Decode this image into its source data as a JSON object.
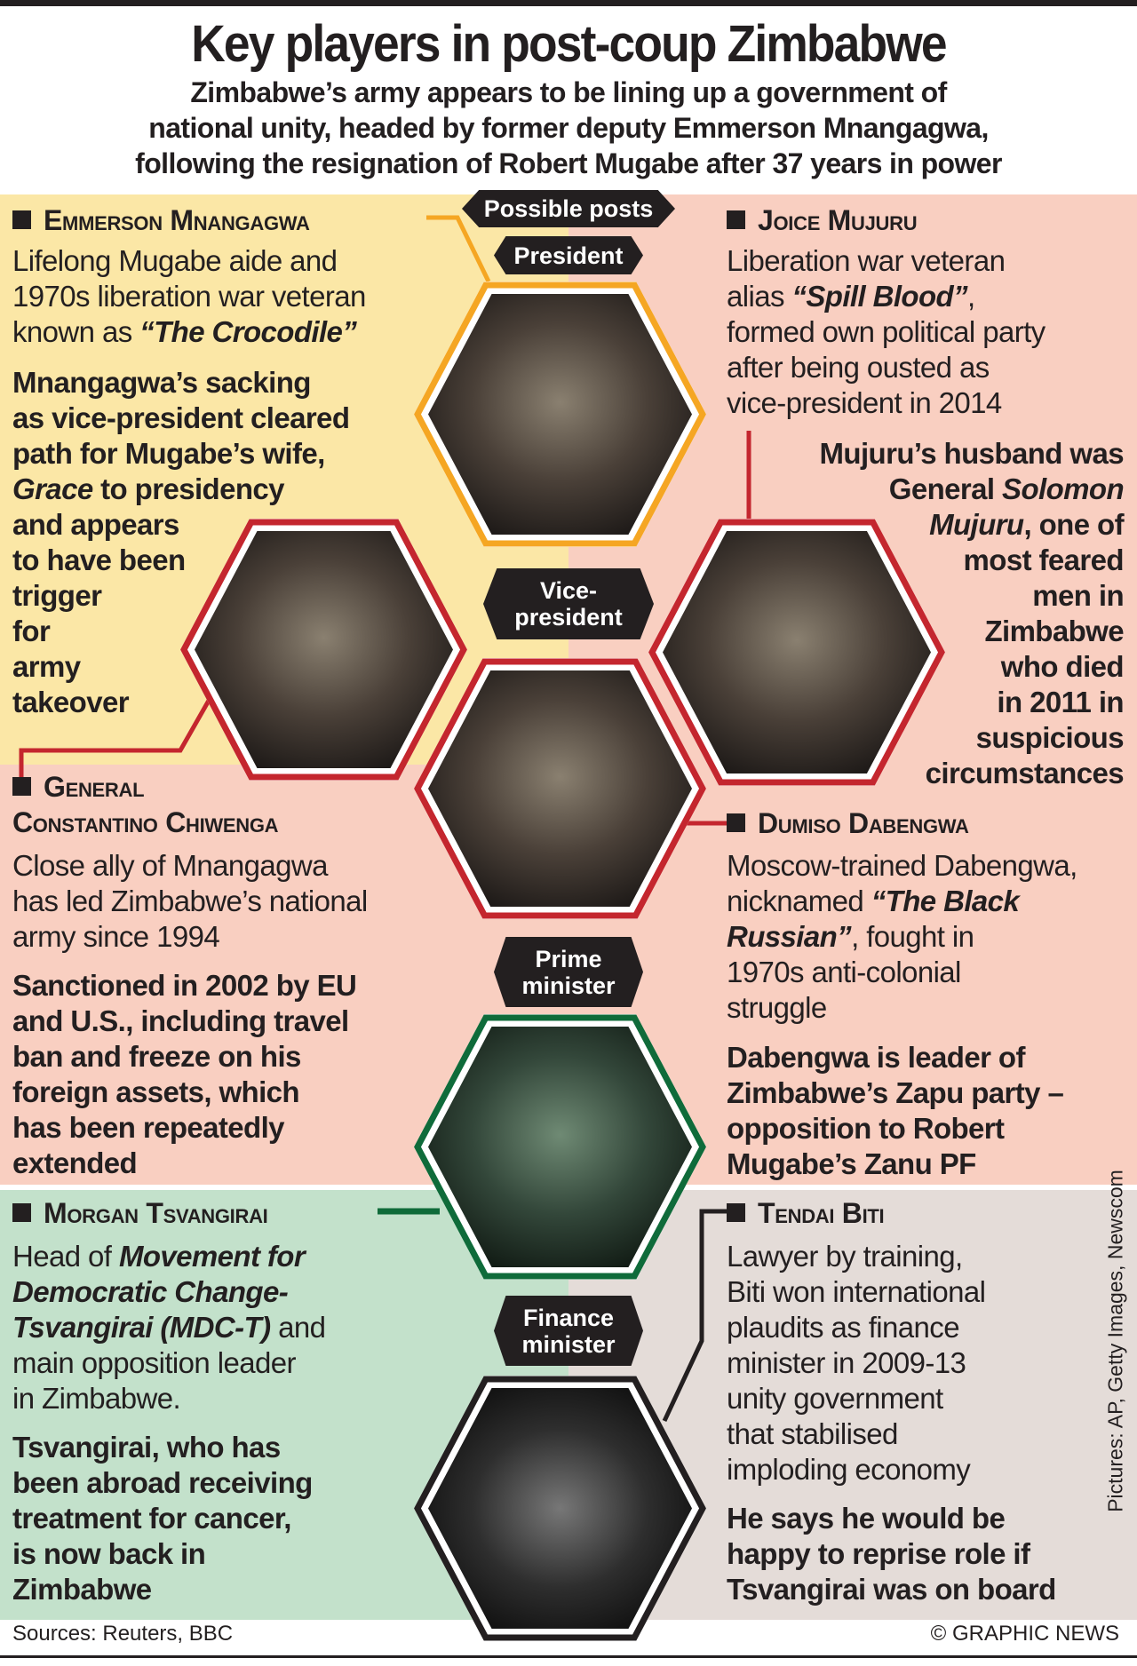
{
  "title": "Key players in post-coup Zimbabwe",
  "subtitle": [
    "Zimbabwe’s army appears to be lining up a government of",
    "national unity, headed by former deputy Emmerson Mnangagwa,",
    "following the resignation of Robert Mugabe after 37 years in power"
  ],
  "colors": {
    "yellow_panel": "#fbe7a6",
    "pink_panel": "#f9cfc1",
    "green_panel": "#c3e1cb",
    "grey_panel": "#e4dcd8",
    "president": "#f5a623",
    "vice_president": "#c4262e",
    "prime_minister": "#0f6b3a",
    "finance_minister": "#231f20"
  },
  "posts": {
    "header": "Possible posts",
    "president": "President",
    "vice_president": [
      "Vice-",
      "president"
    ],
    "prime_minister": [
      "Prime",
      "minister"
    ],
    "finance_minister": [
      "Finance",
      "minister"
    ]
  },
  "people": {
    "mnangagwa": {
      "name": "Emmerson Mnangagwa",
      "body": [
        [
          [
            "Lifelong Mugabe aide and",
            0
          ]
        ],
        [
          [
            "1970s liberation war veteran",
            0
          ]
        ],
        [
          [
            "known as ",
            0
          ],
          [
            "“The Crocodile”",
            1
          ]
        ]
      ],
      "bold": [
        [
          [
            "Mnangagwa’s sacking",
            0
          ]
        ],
        [
          [
            "as vice-president cleared",
            0
          ]
        ],
        [
          [
            "path for Mugabe’s wife,",
            0
          ]
        ],
        [
          [
            "Grace",
            1
          ],
          [
            " to presidency",
            0
          ]
        ],
        [
          [
            "and appears",
            0
          ]
        ],
        [
          [
            "to have been",
            0
          ]
        ],
        [
          [
            "trigger",
            0
          ]
        ],
        [
          [
            "for",
            0
          ]
        ],
        [
          [
            "army",
            0
          ]
        ],
        [
          [
            "takeover",
            0
          ]
        ]
      ]
    },
    "mujuru": {
      "name": "Joice Mujuru",
      "body": [
        [
          [
            "Liberation war veteran",
            0
          ]
        ],
        [
          [
            "alias ",
            0
          ],
          [
            "“Spill Blood”",
            1
          ],
          [
            ",",
            0
          ]
        ],
        [
          [
            "formed own political party",
            0
          ]
        ],
        [
          [
            "after being ousted as",
            0
          ]
        ],
        [
          [
            "vice-president in 2014",
            0
          ]
        ]
      ],
      "bold": [
        [
          [
            "Mujuru’s husband was",
            0
          ]
        ],
        [
          [
            "General ",
            0
          ],
          [
            "Solomon",
            1
          ]
        ],
        [
          [
            "Mujuru",
            1
          ],
          [
            ", one of",
            0
          ]
        ],
        [
          [
            "most feared",
            0
          ]
        ],
        [
          [
            "men in",
            0
          ]
        ],
        [
          [
            "Zimbabwe",
            0
          ]
        ],
        [
          [
            "who died",
            0
          ]
        ],
        [
          [
            "in 2011 in",
            0
          ]
        ],
        [
          [
            "suspicious",
            0
          ]
        ],
        [
          [
            "circumstances",
            0
          ]
        ]
      ]
    },
    "chiwenga": {
      "name": [
        "General",
        "Constantino Chiwenga"
      ],
      "body": [
        [
          [
            "Close ally of Mnangagwa",
            0
          ]
        ],
        [
          [
            "has led Zimbabwe’s national",
            0
          ]
        ],
        [
          [
            "army since 1994",
            0
          ]
        ]
      ],
      "bold": [
        [
          [
            "Sanctioned in 2002 by EU",
            0
          ]
        ],
        [
          [
            "and U.S., including travel",
            0
          ]
        ],
        [
          [
            "ban and freeze on his",
            0
          ]
        ],
        [
          [
            "foreign assets, which",
            0
          ]
        ],
        [
          [
            "has been repeatedly",
            0
          ]
        ],
        [
          [
            "extended",
            0
          ]
        ]
      ]
    },
    "dabengwa": {
      "name": "Dumiso Dabengwa",
      "body": [
        [
          [
            "Moscow-trained Dabengwa,",
            0
          ]
        ],
        [
          [
            "nicknamed ",
            0
          ],
          [
            "“The Black",
            1
          ]
        ],
        [
          [
            "Russian”",
            1
          ],
          [
            ", fought in",
            0
          ]
        ],
        [
          [
            "1970s anti-colonial",
            0
          ]
        ],
        [
          [
            "struggle",
            0
          ]
        ]
      ],
      "bold": [
        [
          [
            "Dabengwa is leader of",
            0
          ]
        ],
        [
          [
            "Zimbabwe’s Zapu party –",
            0
          ]
        ],
        [
          [
            "opposition to Robert",
            0
          ]
        ],
        [
          [
            "Mugabe’s Zanu PF",
            0
          ]
        ]
      ]
    },
    "tsvangirai": {
      "name": "Morgan Tsvangirai",
      "body": [
        [
          [
            "Head of ",
            0
          ],
          [
            "Movement for",
            2
          ]
        ],
        [
          [
            "Democratic Change-",
            2
          ]
        ],
        [
          [
            "Tsvangirai (MDC-T)",
            2
          ],
          [
            " and",
            0
          ]
        ],
        [
          [
            "main opposition leader",
            0
          ]
        ],
        [
          [
            "in Zimbabwe.",
            0
          ]
        ]
      ],
      "bold": [
        [
          [
            "Tsvangirai, who has",
            0
          ]
        ],
        [
          [
            "been abroad receiving",
            0
          ]
        ],
        [
          [
            "treatment for cancer,",
            0
          ]
        ],
        [
          [
            "is now back in",
            0
          ]
        ],
        [
          [
            "Zimbabwe",
            0
          ]
        ]
      ]
    },
    "biti": {
      "name": "Tendai Biti",
      "body": [
        [
          [
            "Lawyer by training,",
            0
          ]
        ],
        [
          [
            "Biti won international",
            0
          ]
        ],
        [
          [
            "plaudits as finance",
            0
          ]
        ],
        [
          [
            "minister in 2009-13",
            0
          ]
        ],
        [
          [
            "unity government",
            0
          ]
        ],
        [
          [
            "that stabilised",
            0
          ]
        ],
        [
          [
            "imploding economy",
            0
          ]
        ]
      ],
      "bold": [
        [
          [
            "He says he would be",
            0
          ]
        ],
        [
          [
            "happy to reprise role if",
            0
          ]
        ],
        [
          [
            "Tsvangirai was on board",
            0
          ]
        ]
      ]
    }
  },
  "footer": {
    "sources": "Sources: Reuters, BBC",
    "copyright": "© GRAPHIC NEWS",
    "credit": "Pictures: AP, Getty Images, Newscom"
  }
}
